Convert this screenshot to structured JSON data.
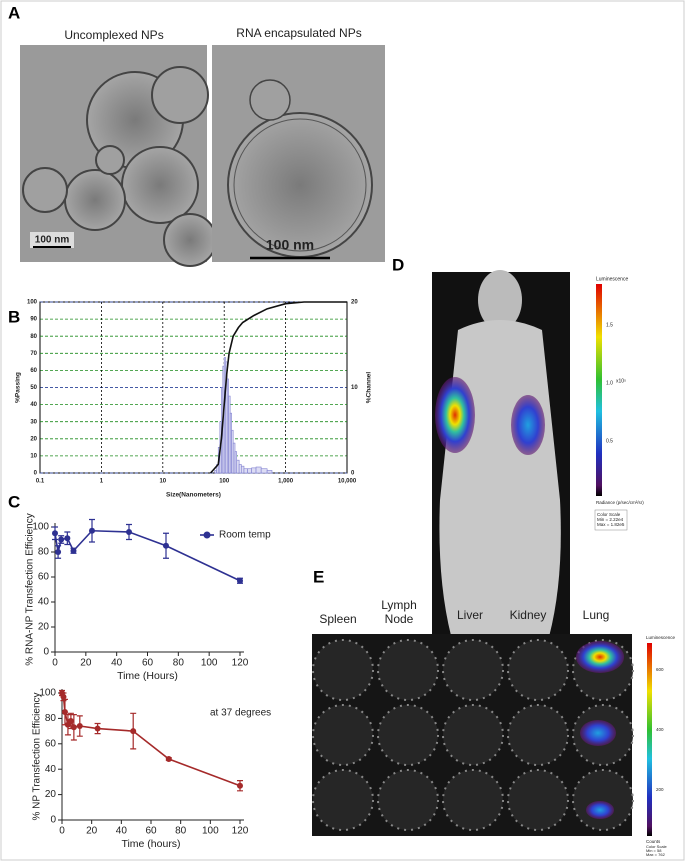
{
  "panel_labels": [
    "A",
    "B",
    "C",
    "D",
    "E"
  ],
  "panel_a": {
    "captions": [
      "Uncomplexed NPs",
      "RNA encapsulated NPs"
    ],
    "scale_bars": [
      "100 nm",
      "100 nm"
    ]
  },
  "panel_d": {
    "colorbar_title": "Luminescence",
    "colorbar_ticks": [
      "1.5",
      "1.0",
      "0.5"
    ],
    "colorbar_exponent": "x10⁵",
    "colorbar_unit": "Radiance (p/sec/cm²/sr)",
    "scale_note": [
      "Color Scale",
      "Min = 2.22e4",
      "Max = 1.82e5"
    ]
  },
  "panel_e": {
    "organs": [
      "Spleen",
      "Lymph Node",
      "Liver",
      "Kidney",
      "Lung"
    ],
    "colorbar_title": "Luminescence",
    "colorbar_ticks": [
      "600",
      "400",
      "200"
    ],
    "colorbar_unit": "Counts",
    "scale_note": [
      "Color Scale",
      "Min = 58",
      "Max = 762"
    ]
  },
  "chart_data": [
    {
      "type": "histogram",
      "x_label": "Size(Nanometers)",
      "y_label": "%Passing",
      "y2_label": "%Channel",
      "log_x": true,
      "grid": true,
      "xlim": [
        0.1,
        10000
      ],
      "xticks": [
        0.1,
        1,
        10,
        100,
        {
          "value": 1000,
          "label": "1,000"
        },
        {
          "value": 10000,
          "label": "10,000"
        }
      ],
      "ylim": [
        0,
        100
      ],
      "yticks": [
        0,
        10,
        20,
        30,
        40,
        50,
        60,
        70,
        80,
        90,
        100
      ],
      "y2lim": [
        0,
        20
      ],
      "y2ticks": [
        0,
        10,
        20
      ],
      "bars": {
        "axis": "y2",
        "color": "#8080d0",
        "bins": [
          70,
          75,
          80,
          85,
          90,
          95,
          100,
          106,
          112,
          118,
          125,
          132,
          140,
          150,
          160,
          175,
          190,
          210,
          240,
          280,
          330,
          400,
          500,
          600
        ],
        "counts": [
          0.3,
          1,
          3,
          6,
          10,
          12.5,
          13.5,
          13,
          11,
          9,
          7,
          5,
          3.5,
          2.5,
          1.5,
          1,
          0.8,
          0.5,
          0.5,
          0.6,
          0.7,
          0.5,
          0.3
        ]
      },
      "line": {
        "color": "#111",
        "x": [
          60,
          80,
          90,
          100,
          110,
          120,
          140,
          170,
          200,
          300,
          500,
          1000,
          2000,
          5000,
          10000
        ],
        "values": [
          0,
          5,
          20,
          40,
          58,
          70,
          80,
          85,
          88,
          92,
          96,
          99,
          100,
          100,
          100
        ]
      }
    },
    {
      "type": "line",
      "x_label": "Time (Hours)",
      "y_label": "% RNA-NP Transfection Efficiency",
      "legend": "upper right",
      "xlim": [
        0,
        120
      ],
      "xticks": [
        0,
        20,
        40,
        60,
        80,
        100,
        120
      ],
      "ylim": [
        0,
        100
      ],
      "yticks": [
        0,
        20,
        40,
        60,
        80,
        100
      ],
      "series": [
        {
          "name": "Room temp",
          "color": "#2e3192",
          "x": [
            0,
            2,
            4,
            8,
            12,
            24,
            48,
            72,
            120
          ],
          "values": [
            95,
            80,
            90,
            91,
            81,
            97,
            96,
            85,
            57
          ],
          "errors": [
            5,
            5,
            3,
            5,
            2,
            9,
            6,
            10,
            2
          ]
        }
      ]
    },
    {
      "type": "line",
      "x_label": "Time (hours)",
      "y_label": "% NP Transfection Efficiency",
      "annotation": "at 37 degrees",
      "xlim": [
        0,
        120
      ],
      "xticks": [
        0,
        20,
        40,
        60,
        80,
        100,
        120
      ],
      "ylim": [
        0,
        100
      ],
      "yticks": [
        0,
        20,
        40,
        60,
        80,
        100
      ],
      "series": [
        {
          "color": "#a52a2a",
          "x": [
            0,
            1,
            2,
            4,
            6,
            8,
            12,
            24,
            48,
            72,
            120
          ],
          "values": [
            100,
            97,
            85,
            75,
            78,
            73,
            74,
            72,
            70,
            48,
            27
          ],
          "errors": [
            2,
            3,
            10,
            8,
            6,
            10,
            8,
            4,
            14,
            1,
            4
          ]
        }
      ]
    }
  ]
}
